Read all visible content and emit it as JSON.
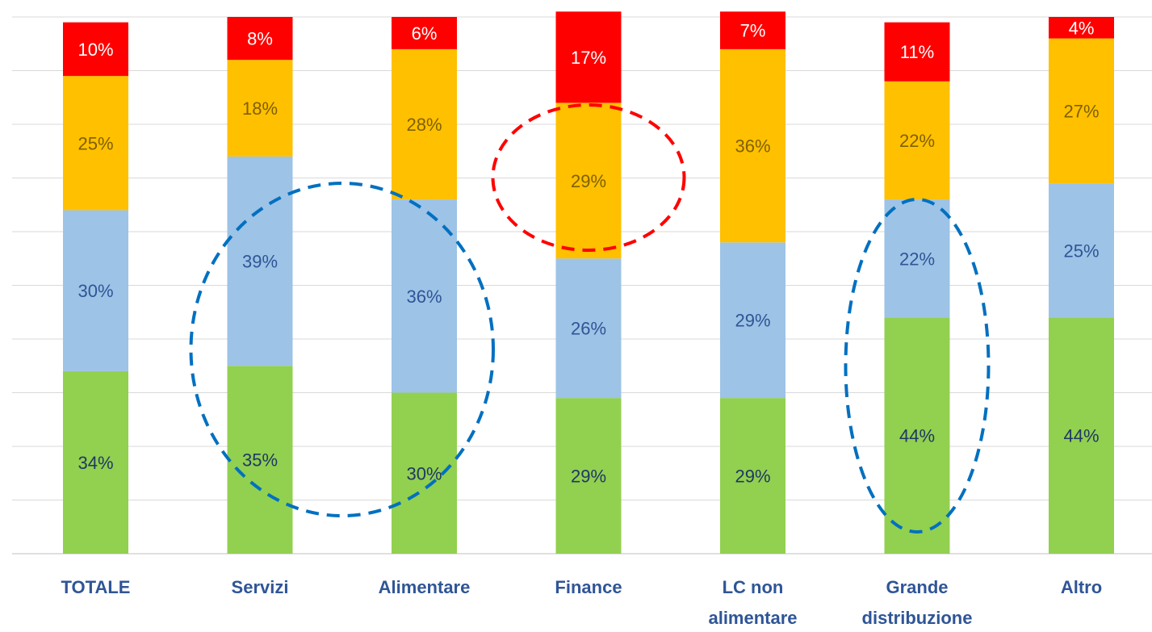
{
  "chart_data": {
    "type": "bar",
    "stacked": true,
    "percent_stacked": true,
    "categories": [
      [
        "TOTALE"
      ],
      [
        "Servizi"
      ],
      [
        "Alimentare"
      ],
      [
        "Finance"
      ],
      [
        "LC non",
        "alimentare"
      ],
      [
        "Grande",
        "distribuzione"
      ],
      [
        "Altro"
      ]
    ],
    "series": [
      {
        "values": [
          34,
          35,
          30,
          29,
          29,
          44,
          44
        ],
        "color": "#92D050",
        "label_color": "#1F3864"
      },
      {
        "values": [
          30,
          39,
          36,
          26,
          29,
          22,
          25
        ],
        "color": "#9DC3E6",
        "label_color": "#2F5597"
      },
      {
        "values": [
          25,
          18,
          28,
          29,
          36,
          22,
          27
        ],
        "color": "#FFC000",
        "label_color": "#7F6000"
      },
      {
        "values": [
          10,
          8,
          6,
          17,
          7,
          11,
          4
        ],
        "color": "#FF0000",
        "label_color": "#FFFFFF"
      }
    ],
    "ylim": [
      0,
      100
    ],
    "grid": true,
    "legend": "none",
    "category_label_color": "#2F5597",
    "annotations": [
      {
        "type": "dashed-ellipse",
        "color": "#0070C0",
        "highlights": [
          "Servizi",
          "Alimentare"
        ],
        "series_index": 1
      },
      {
        "type": "dashed-ellipse",
        "color": "#FF0000",
        "highlights": [
          "Finance"
        ],
        "series_index": 2
      },
      {
        "type": "dashed-ellipse",
        "color": "#0070C0",
        "highlights": [
          "Grande distribuzione"
        ],
        "series_index": 0
      }
    ]
  }
}
